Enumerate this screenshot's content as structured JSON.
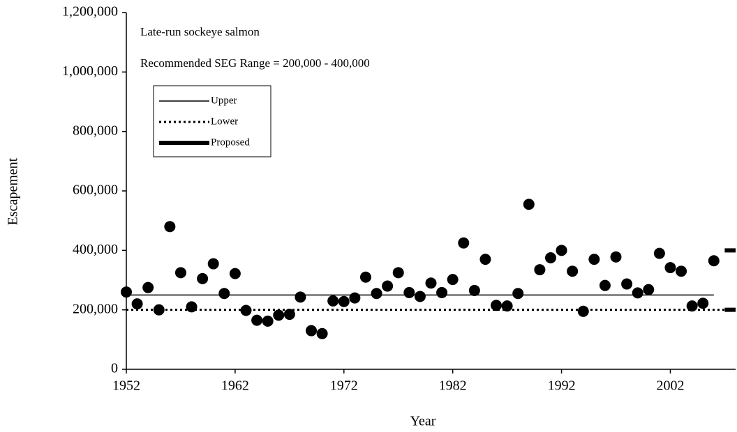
{
  "chart_data": {
    "type": "scatter",
    "xlabel": "Year",
    "ylabel": "Escapement",
    "annotations": [
      "Late-run sockeye salmon",
      "Recommended SEG Range = 200,000 - 400,000"
    ],
    "xlim": [
      1952,
      2008
    ],
    "xticks": [
      1952,
      1962,
      1972,
      1982,
      1992,
      2002
    ],
    "ylim": [
      0,
      1200000
    ],
    "yticks": [
      0,
      {
        "value": 200000,
        "label": "200,000"
      },
      {
        "value": 400000,
        "label": "400,000"
      },
      {
        "value": 600000,
        "label": "600,000"
      },
      {
        "value": 800000,
        "label": "800,000"
      },
      {
        "value": 1000000,
        "label": "1,000,000"
      },
      {
        "value": 1200000,
        "label": "1,200,000"
      }
    ],
    "points": {
      "color": "#000000",
      "x": [
        1952,
        1953,
        1954,
        1955,
        1956,
        1957,
        1958,
        1959,
        1960,
        1961,
        1962,
        1963,
        1964,
        1965,
        1966,
        1967,
        1968,
        1969,
        1970,
        1971,
        1972,
        1973,
        1974,
        1975,
        1976,
        1977,
        1978,
        1979,
        1980,
        1981,
        1982,
        1983,
        1984,
        1985,
        1986,
        1987,
        1988,
        1989,
        1990,
        1991,
        1992,
        1993,
        1994,
        1995,
        1996,
        1997,
        1998,
        1999,
        2000,
        2001,
        2002,
        2003,
        2004,
        2005,
        2006
      ],
      "values": [
        260000,
        220000,
        275000,
        200000,
        480000,
        325000,
        210000,
        305000,
        355000,
        255000,
        322000,
        198000,
        165000,
        162000,
        182000,
        185000,
        243000,
        130000,
        120000,
        230000,
        228000,
        240000,
        310000,
        255000,
        280000,
        325000,
        258000,
        245000,
        290000,
        258000,
        302000,
        425000,
        265000,
        370000,
        215000,
        213000,
        255000,
        555000,
        335000,
        375000,
        400000,
        330000,
        195000,
        370000,
        282000,
        378000,
        287000,
        257000,
        268000,
        390000,
        342000,
        330000,
        213000,
        222000,
        365000
      ]
    },
    "lines": [
      {
        "name": "Upper",
        "style": "solid",
        "color": "#000000",
        "x": [
          1952,
          2006
        ],
        "values": [
          250000,
          250000
        ]
      },
      {
        "name": "Lower",
        "style": "dotted",
        "color": "#000000",
        "x": [
          1952,
          2007
        ],
        "values": [
          200000,
          200000
        ]
      },
      {
        "name": "Proposed",
        "style": "thick",
        "color": "#000000",
        "x": [
          2007,
          2008,
          null,
          2007,
          2008
        ],
        "values": [
          400000,
          400000,
          null,
          200000,
          200000
        ]
      }
    ],
    "legend": "upper left"
  }
}
